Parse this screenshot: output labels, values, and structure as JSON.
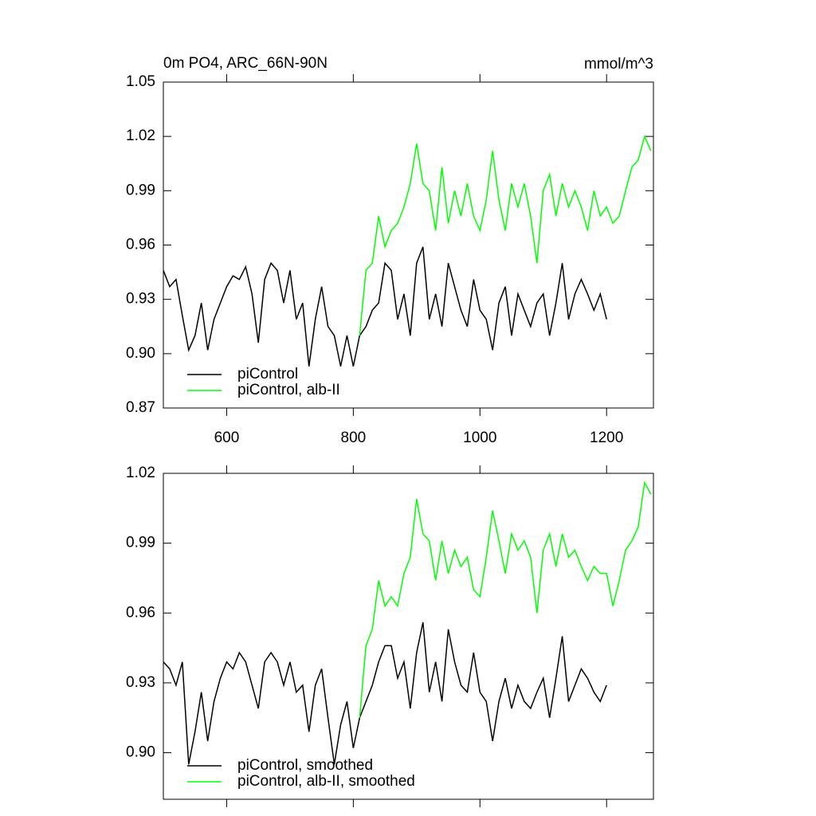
{
  "chart_data": [
    {
      "type": "line",
      "title": "0m PO4, ARC_66N-90N",
      "units": "mmol/m^3",
      "x": [
        500,
        510,
        520,
        530,
        540,
        550,
        560,
        570,
        580,
        590,
        600,
        610,
        620,
        630,
        640,
        650,
        660,
        670,
        680,
        690,
        700,
        710,
        720,
        730,
        740,
        750,
        760,
        770,
        780,
        790,
        800,
        810,
        820,
        830,
        840,
        850,
        860,
        870,
        880,
        890,
        900,
        910,
        920,
        930,
        940,
        950,
        960,
        970,
        980,
        990,
        1000,
        1010,
        1020,
        1030,
        1040,
        1050,
        1060,
        1070,
        1080,
        1090,
        1100,
        1110,
        1120,
        1130,
        1140,
        1150,
        1160,
        1170,
        1180,
        1190,
        1200,
        1210,
        1220,
        1230,
        1240,
        1250,
        1260,
        1270
      ],
      "series": [
        {
          "name": "piControl",
          "color": "#000000",
          "values": [
            0.946,
            0.937,
            0.941,
            0.921,
            0.902,
            0.91,
            0.928,
            0.902,
            0.919,
            0.928,
            0.937,
            0.943,
            0.941,
            0.948,
            0.933,
            0.906,
            0.941,
            0.95,
            0.946,
            0.928,
            0.946,
            0.919,
            0.928,
            0.893,
            0.919,
            0.937,
            0.915,
            0.91,
            0.893,
            0.91,
            0.893,
            0.91,
            0.915,
            0.924,
            0.928,
            0.95,
            0.946,
            0.919,
            0.933,
            0.91,
            0.95,
            0.959,
            0.919,
            0.933,
            0.915,
            0.95,
            0.937,
            0.924,
            0.915,
            0.941,
            0.924,
            0.919,
            0.902,
            0.928,
            0.937,
            0.91,
            0.933,
            0.924,
            0.915,
            0.928,
            0.933,
            0.91,
            0.928,
            0.95,
            0.919,
            0.933,
            0.941,
            0.933,
            0.924,
            0.933,
            0.919,
            null,
            null,
            null,
            null,
            null,
            null,
            null
          ]
        },
        {
          "name": "piControl, alb-II",
          "color": "#00ff00",
          "values": [
            null,
            null,
            null,
            null,
            null,
            null,
            null,
            null,
            null,
            null,
            null,
            null,
            null,
            null,
            null,
            null,
            null,
            null,
            null,
            null,
            null,
            null,
            null,
            null,
            null,
            null,
            null,
            null,
            null,
            null,
            null,
            0.91,
            0.946,
            0.95,
            0.976,
            0.959,
            0.968,
            0.972,
            0.981,
            0.994,
            1.016,
            0.994,
            0.99,
            0.968,
            1.003,
            0.972,
            0.99,
            0.976,
            0.994,
            0.976,
            0.968,
            0.985,
            1.012,
            0.985,
            0.968,
            0.994,
            0.981,
            0.994,
            0.976,
            0.95,
            0.99,
            0.999,
            0.976,
            0.994,
            0.981,
            0.99,
            0.981,
            0.968,
            0.99,
            0.976,
            0.981,
            0.972,
            0.976,
            0.99,
            1.003,
            1.007,
            1.02,
            1.012
          ]
        }
      ],
      "xlim": [
        500,
        1274
      ],
      "ylim": [
        0.87,
        1.05
      ],
      "xticks": [
        600,
        800,
        1000,
        1200
      ],
      "yticks": [
        0.87,
        {
          "value": 0.9,
          "label": "0.90"
        },
        0.93,
        0.96,
        0.99,
        1.02,
        1.05
      ],
      "legend": "lower left"
    },
    {
      "type": "line",
      "x": [
        500,
        510,
        520,
        530,
        540,
        550,
        560,
        570,
        580,
        590,
        600,
        610,
        620,
        630,
        640,
        650,
        660,
        670,
        680,
        690,
        700,
        710,
        720,
        730,
        740,
        750,
        760,
        770,
        780,
        790,
        800,
        810,
        820,
        830,
        840,
        850,
        860,
        870,
        880,
        890,
        900,
        910,
        920,
        930,
        940,
        950,
        960,
        970,
        980,
        990,
        1000,
        1010,
        1020,
        1030,
        1040,
        1050,
        1060,
        1070,
        1080,
        1090,
        1100,
        1110,
        1120,
        1130,
        1140,
        1150,
        1160,
        1170,
        1180,
        1190,
        1200,
        1210,
        1220,
        1230,
        1240,
        1250,
        1260,
        1270
      ],
      "series": [
        {
          "name": "piControl, smoothed",
          "color": "#000000",
          "values": [
            0.939,
            0.936,
            0.929,
            0.939,
            0.895,
            0.909,
            0.926,
            0.905,
            0.922,
            0.932,
            0.939,
            0.936,
            0.943,
            0.939,
            0.929,
            0.919,
            0.939,
            0.943,
            0.939,
            0.929,
            0.939,
            0.926,
            0.929,
            0.909,
            0.929,
            0.936,
            0.915,
            0.895,
            0.912,
            0.922,
            0.902,
            0.915,
            0.922,
            0.929,
            0.939,
            0.946,
            0.946,
            0.932,
            0.939,
            0.919,
            0.943,
            0.956,
            0.926,
            0.939,
            0.922,
            0.953,
            0.939,
            0.929,
            0.926,
            0.943,
            0.926,
            0.922,
            0.905,
            0.922,
            0.932,
            0.919,
            0.929,
            0.922,
            0.919,
            0.926,
            0.932,
            0.915,
            0.932,
            0.95,
            0.922,
            0.929,
            0.936,
            0.932,
            0.926,
            0.922,
            0.929,
            null,
            null,
            null,
            null,
            null,
            null,
            null
          ]
        },
        {
          "name": "piControl, alb-II, smoothed",
          "color": "#00ff00",
          "values": [
            null,
            null,
            null,
            null,
            null,
            null,
            null,
            null,
            null,
            null,
            null,
            null,
            null,
            null,
            null,
            null,
            null,
            null,
            null,
            null,
            null,
            null,
            null,
            null,
            null,
            null,
            null,
            null,
            null,
            null,
            null,
            0.915,
            0.946,
            0.953,
            0.974,
            0.963,
            0.967,
            0.963,
            0.977,
            0.984,
            1.009,
            0.994,
            0.991,
            0.974,
            0.991,
            0.977,
            0.987,
            0.98,
            0.984,
            0.97,
            0.967,
            0.984,
            1.004,
            0.991,
            0.977,
            0.994,
            0.987,
            0.991,
            0.984,
            0.96,
            0.987,
            0.994,
            0.98,
            0.994,
            0.984,
            0.987,
            0.98,
            0.974,
            0.98,
            0.977,
            0.977,
            0.963,
            0.974,
            0.987,
            0.991,
            0.997,
            1.016,
            1.011
          ]
        }
      ],
      "xlim": [
        500,
        1274
      ],
      "ylim": [
        0.88,
        1.02
      ],
      "xticks": [
        600,
        800,
        1000,
        1200
      ],
      "xtick_labels": false,
      "yticks": [
        {
          "value": 0.9,
          "label": "0.90"
        },
        0.93,
        0.96,
        0.99,
        1.02
      ],
      "legend": "lower left"
    }
  ]
}
